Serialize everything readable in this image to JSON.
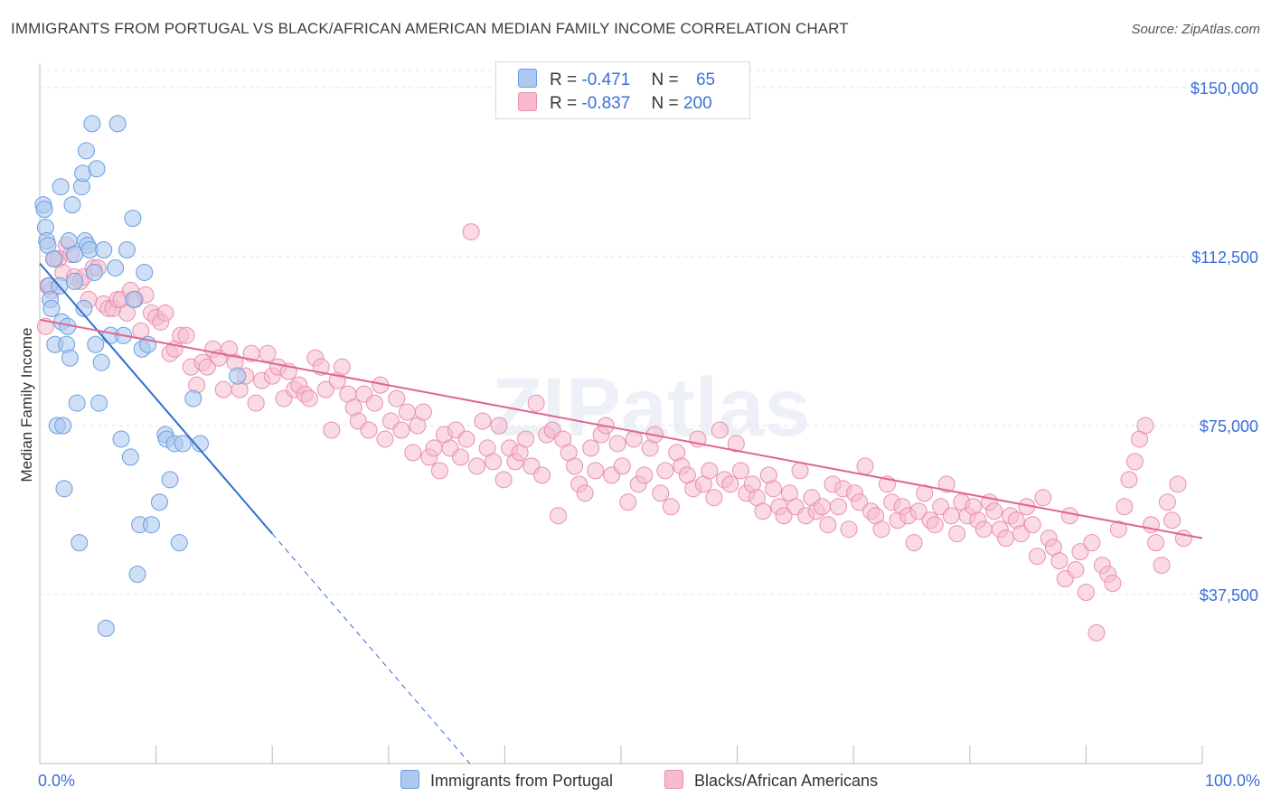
{
  "title": "IMMIGRANTS FROM PORTUGAL VS BLACK/AFRICAN AMERICAN MEDIAN FAMILY INCOME CORRELATION CHART",
  "source": "Source: ZipAtlas.com",
  "legend": {
    "r_label": "R =",
    "n_label": "N =",
    "series1": {
      "r": "-0.471",
      "n": "65"
    },
    "series2": {
      "r": "-0.837",
      "n": "200"
    }
  },
  "colors": {
    "series1_fill": "#aec9f0",
    "series1_stroke": "#6a9ee0",
    "series1_line": "#2f6fd0",
    "series2_fill": "#f6bccd",
    "series2_stroke": "#e891ad",
    "series2_line": "#e06592",
    "axis_label": "#3a6fd8",
    "grid": "#e3e3e3"
  },
  "chart_data": {
    "type": "scatter",
    "title": "IMMIGRANTS FROM PORTUGAL VS BLACK/AFRICAN AMERICAN MEDIAN FAMILY INCOME CORRELATION CHART",
    "xlabel": "",
    "ylabel": "Median Family Income",
    "xlim": [
      0,
      100
    ],
    "ylim": [
      0,
      155000
    ],
    "x_tick_labels": [
      "0.0%",
      "100.0%"
    ],
    "y_ticks": [
      37500,
      75000,
      112500,
      150000
    ],
    "y_tick_labels": [
      "$37,500",
      "$75,000",
      "$112,500",
      "$150,000"
    ],
    "watermark": "ZIPatlas",
    "series": [
      {
        "name": "Immigrants from Portugal",
        "trend": {
          "x0": 0,
          "y0": 111000,
          "x1": 20,
          "y1": 51000,
          "dashed_to_x": 37
        },
        "points": [
          [
            0.3,
            124000
          ],
          [
            0.4,
            123000
          ],
          [
            0.5,
            119000
          ],
          [
            0.6,
            116000
          ],
          [
            0.7,
            115000
          ],
          [
            0.8,
            106000
          ],
          [
            0.9,
            103000
          ],
          [
            1.0,
            101000
          ],
          [
            1.2,
            112000
          ],
          [
            1.3,
            93000
          ],
          [
            1.5,
            75000
          ],
          [
            1.7,
            106000
          ],
          [
            1.8,
            128000
          ],
          [
            1.9,
            98000
          ],
          [
            2.0,
            75000
          ],
          [
            2.1,
            61000
          ],
          [
            2.3,
            93000
          ],
          [
            2.4,
            97000
          ],
          [
            2.5,
            116000
          ],
          [
            2.6,
            90000
          ],
          [
            2.8,
            124000
          ],
          [
            3.0,
            113000
          ],
          [
            3.0,
            107000
          ],
          [
            3.2,
            80000
          ],
          [
            3.4,
            49000
          ],
          [
            3.6,
            128000
          ],
          [
            3.7,
            131000
          ],
          [
            3.8,
            101000
          ],
          [
            3.9,
            116000
          ],
          [
            4.0,
            136000
          ],
          [
            4.1,
            115000
          ],
          [
            4.3,
            114000
          ],
          [
            4.5,
            142000
          ],
          [
            4.7,
            109000
          ],
          [
            4.8,
            93000
          ],
          [
            4.9,
            132000
          ],
          [
            5.1,
            80000
          ],
          [
            5.3,
            89000
          ],
          [
            5.5,
            114000
          ],
          [
            5.7,
            30000
          ],
          [
            6.1,
            95000
          ],
          [
            6.5,
            110000
          ],
          [
            6.7,
            142000
          ],
          [
            7.0,
            72000
          ],
          [
            7.2,
            95000
          ],
          [
            7.5,
            114000
          ],
          [
            7.8,
            68000
          ],
          [
            8.0,
            121000
          ],
          [
            8.1,
            103000
          ],
          [
            8.4,
            42000
          ],
          [
            8.6,
            53000
          ],
          [
            8.8,
            92000
          ],
          [
            9.0,
            109000
          ],
          [
            9.3,
            93000
          ],
          [
            9.6,
            53000
          ],
          [
            10.3,
            58000
          ],
          [
            10.8,
            73000
          ],
          [
            10.9,
            72000
          ],
          [
            11.2,
            63000
          ],
          [
            11.6,
            71000
          ],
          [
            12.0,
            49000
          ],
          [
            12.3,
            71000
          ],
          [
            13.2,
            81000
          ],
          [
            13.8,
            71000
          ],
          [
            17.0,
            86000
          ]
        ]
      },
      {
        "name": "Blacks/African Americans",
        "trend": {
          "x0": 0,
          "y0": 98500,
          "x1": 100,
          "y1": 50000
        },
        "points": [
          [
            0.5,
            97000
          ],
          [
            0.7,
            106000
          ],
          [
            1.0,
            105000
          ],
          [
            1.3,
            112000
          ],
          [
            1.6,
            112000
          ],
          [
            2.0,
            109000
          ],
          [
            2.3,
            115000
          ],
          [
            2.7,
            113000
          ],
          [
            3.0,
            108000
          ],
          [
            3.5,
            107000
          ],
          [
            3.8,
            108000
          ],
          [
            4.2,
            103000
          ],
          [
            4.6,
            110000
          ],
          [
            5.0,
            110000
          ],
          [
            5.5,
            102000
          ],
          [
            5.9,
            101000
          ],
          [
            6.3,
            101000
          ],
          [
            6.7,
            103000
          ],
          [
            7.0,
            103000
          ],
          [
            7.5,
            100000
          ],
          [
            7.8,
            105000
          ],
          [
            8.2,
            103000
          ],
          [
            8.7,
            96000
          ],
          [
            9.1,
            104000
          ],
          [
            9.6,
            100000
          ],
          [
            10.0,
            99000
          ],
          [
            10.4,
            98000
          ],
          [
            10.8,
            100000
          ],
          [
            11.2,
            91000
          ],
          [
            11.6,
            92000
          ],
          [
            12.1,
            95000
          ],
          [
            12.6,
            95000
          ],
          [
            13.0,
            88000
          ],
          [
            13.5,
            84000
          ],
          [
            14.0,
            89000
          ],
          [
            14.4,
            88000
          ],
          [
            14.9,
            92000
          ],
          [
            15.4,
            90000
          ],
          [
            15.8,
            83000
          ],
          [
            16.3,
            92000
          ],
          [
            16.8,
            89000
          ],
          [
            17.2,
            83000
          ],
          [
            17.7,
            86000
          ],
          [
            18.2,
            91000
          ],
          [
            18.6,
            80000
          ],
          [
            19.1,
            85000
          ],
          [
            19.6,
            91000
          ],
          [
            20.0,
            86000
          ],
          [
            20.5,
            88000
          ],
          [
            21.0,
            81000
          ],
          [
            21.4,
            87000
          ],
          [
            21.9,
            83000
          ],
          [
            22.3,
            84000
          ],
          [
            22.8,
            82000
          ],
          [
            23.2,
            81000
          ],
          [
            23.7,
            90000
          ],
          [
            24.2,
            88000
          ],
          [
            24.6,
            83000
          ],
          [
            25.1,
            74000
          ],
          [
            25.6,
            85000
          ],
          [
            26.0,
            88000
          ],
          [
            26.5,
            82000
          ],
          [
            27.0,
            79000
          ],
          [
            27.4,
            76000
          ],
          [
            27.9,
            82000
          ],
          [
            28.3,
            74000
          ],
          [
            28.8,
            80000
          ],
          [
            29.3,
            84000
          ],
          [
            29.7,
            72000
          ],
          [
            30.2,
            76000
          ],
          [
            30.7,
            81000
          ],
          [
            31.1,
            74000
          ],
          [
            31.6,
            78000
          ],
          [
            32.1,
            69000
          ],
          [
            32.5,
            75000
          ],
          [
            33.0,
            78000
          ],
          [
            33.5,
            68000
          ],
          [
            33.9,
            70000
          ],
          [
            34.4,
            65000
          ],
          [
            34.8,
            73000
          ],
          [
            35.3,
            70000
          ],
          [
            35.8,
            74000
          ],
          [
            36.2,
            68000
          ],
          [
            36.7,
            72000
          ],
          [
            37.1,
            118000
          ],
          [
            37.6,
            66000
          ],
          [
            38.1,
            76000
          ],
          [
            38.5,
            70000
          ],
          [
            39.0,
            67000
          ],
          [
            39.5,
            75000
          ],
          [
            39.9,
            63000
          ],
          [
            40.4,
            70000
          ],
          [
            40.9,
            67000
          ],
          [
            41.3,
            69000
          ],
          [
            41.8,
            72000
          ],
          [
            42.3,
            66000
          ],
          [
            42.7,
            80000
          ],
          [
            43.2,
            64000
          ],
          [
            43.6,
            73000
          ],
          [
            44.1,
            74000
          ],
          [
            44.6,
            55000
          ],
          [
            45.0,
            72000
          ],
          [
            45.5,
            69000
          ],
          [
            46.0,
            66000
          ],
          [
            46.4,
            62000
          ],
          [
            46.9,
            60000
          ],
          [
            47.4,
            70000
          ],
          [
            47.8,
            65000
          ],
          [
            48.3,
            73000
          ],
          [
            48.7,
            75000
          ],
          [
            49.2,
            64000
          ],
          [
            49.7,
            71000
          ],
          [
            50.1,
            66000
          ],
          [
            50.6,
            58000
          ],
          [
            51.1,
            72000
          ],
          [
            51.5,
            62000
          ],
          [
            52.0,
            64000
          ],
          [
            52.5,
            70000
          ],
          [
            52.9,
            73000
          ],
          [
            53.4,
            60000
          ],
          [
            53.8,
            65000
          ],
          [
            54.3,
            57000
          ],
          [
            54.8,
            69000
          ],
          [
            55.2,
            66000
          ],
          [
            55.7,
            64000
          ],
          [
            56.2,
            61000
          ],
          [
            56.6,
            72000
          ],
          [
            57.1,
            62000
          ],
          [
            57.6,
            65000
          ],
          [
            58.0,
            59000
          ],
          [
            58.5,
            74000
          ],
          [
            58.9,
            63000
          ],
          [
            59.4,
            62000
          ],
          [
            59.9,
            71000
          ],
          [
            60.3,
            65000
          ],
          [
            60.8,
            60000
          ],
          [
            61.3,
            62000
          ],
          [
            61.7,
            59000
          ],
          [
            62.2,
            56000
          ],
          [
            62.7,
            64000
          ],
          [
            63.1,
            61000
          ],
          [
            63.6,
            57000
          ],
          [
            64.0,
            55000
          ],
          [
            64.5,
            60000
          ],
          [
            65.0,
            57000
          ],
          [
            65.4,
            65000
          ],
          [
            65.9,
            55000
          ],
          [
            66.4,
            59000
          ],
          [
            66.8,
            56000
          ],
          [
            67.3,
            57000
          ],
          [
            67.8,
            53000
          ],
          [
            68.2,
            62000
          ],
          [
            68.7,
            57000
          ],
          [
            69.1,
            61000
          ],
          [
            69.6,
            52000
          ],
          [
            70.1,
            60000
          ],
          [
            70.5,
            58000
          ],
          [
            71.0,
            66000
          ],
          [
            71.5,
            56000
          ],
          [
            71.9,
            55000
          ],
          [
            72.4,
            52000
          ],
          [
            72.9,
            62000
          ],
          [
            73.3,
            58000
          ],
          [
            73.8,
            54000
          ],
          [
            74.2,
            57000
          ],
          [
            74.7,
            55000
          ],
          [
            75.2,
            49000
          ],
          [
            75.6,
            56000
          ],
          [
            76.1,
            60000
          ],
          [
            76.6,
            54000
          ],
          [
            77.0,
            53000
          ],
          [
            77.5,
            57000
          ],
          [
            78.0,
            62000
          ],
          [
            78.4,
            55000
          ],
          [
            78.9,
            51000
          ],
          [
            79.3,
            58000
          ],
          [
            79.8,
            55000
          ],
          [
            80.3,
            57000
          ],
          [
            80.7,
            54000
          ],
          [
            81.2,
            52000
          ],
          [
            81.7,
            58000
          ],
          [
            82.1,
            56000
          ],
          [
            82.6,
            52000
          ],
          [
            83.1,
            50000
          ],
          [
            83.5,
            55000
          ],
          [
            84.0,
            54000
          ],
          [
            84.4,
            51000
          ],
          [
            84.9,
            57000
          ],
          [
            85.4,
            53000
          ],
          [
            85.8,
            46000
          ],
          [
            86.3,
            59000
          ],
          [
            86.8,
            50000
          ],
          [
            87.2,
            48000
          ],
          [
            87.7,
            45000
          ],
          [
            88.2,
            41000
          ],
          [
            88.6,
            55000
          ],
          [
            89.1,
            43000
          ],
          [
            89.5,
            47000
          ],
          [
            90.0,
            38000
          ],
          [
            90.5,
            49000
          ],
          [
            90.9,
            29000
          ],
          [
            91.4,
            44000
          ],
          [
            91.9,
            42000
          ],
          [
            92.3,
            40000
          ],
          [
            92.8,
            52000
          ],
          [
            93.3,
            57000
          ],
          [
            93.7,
            63000
          ],
          [
            94.2,
            67000
          ],
          [
            94.6,
            72000
          ],
          [
            95.1,
            75000
          ],
          [
            95.6,
            53000
          ],
          [
            96.0,
            49000
          ],
          [
            96.5,
            44000
          ],
          [
            97.0,
            58000
          ],
          [
            97.4,
            54000
          ],
          [
            97.9,
            62000
          ],
          [
            98.4,
            50000
          ]
        ]
      }
    ]
  },
  "bottom_legend": {
    "item1": "Immigrants from Portugal",
    "item2": "Blacks/African Americans"
  }
}
